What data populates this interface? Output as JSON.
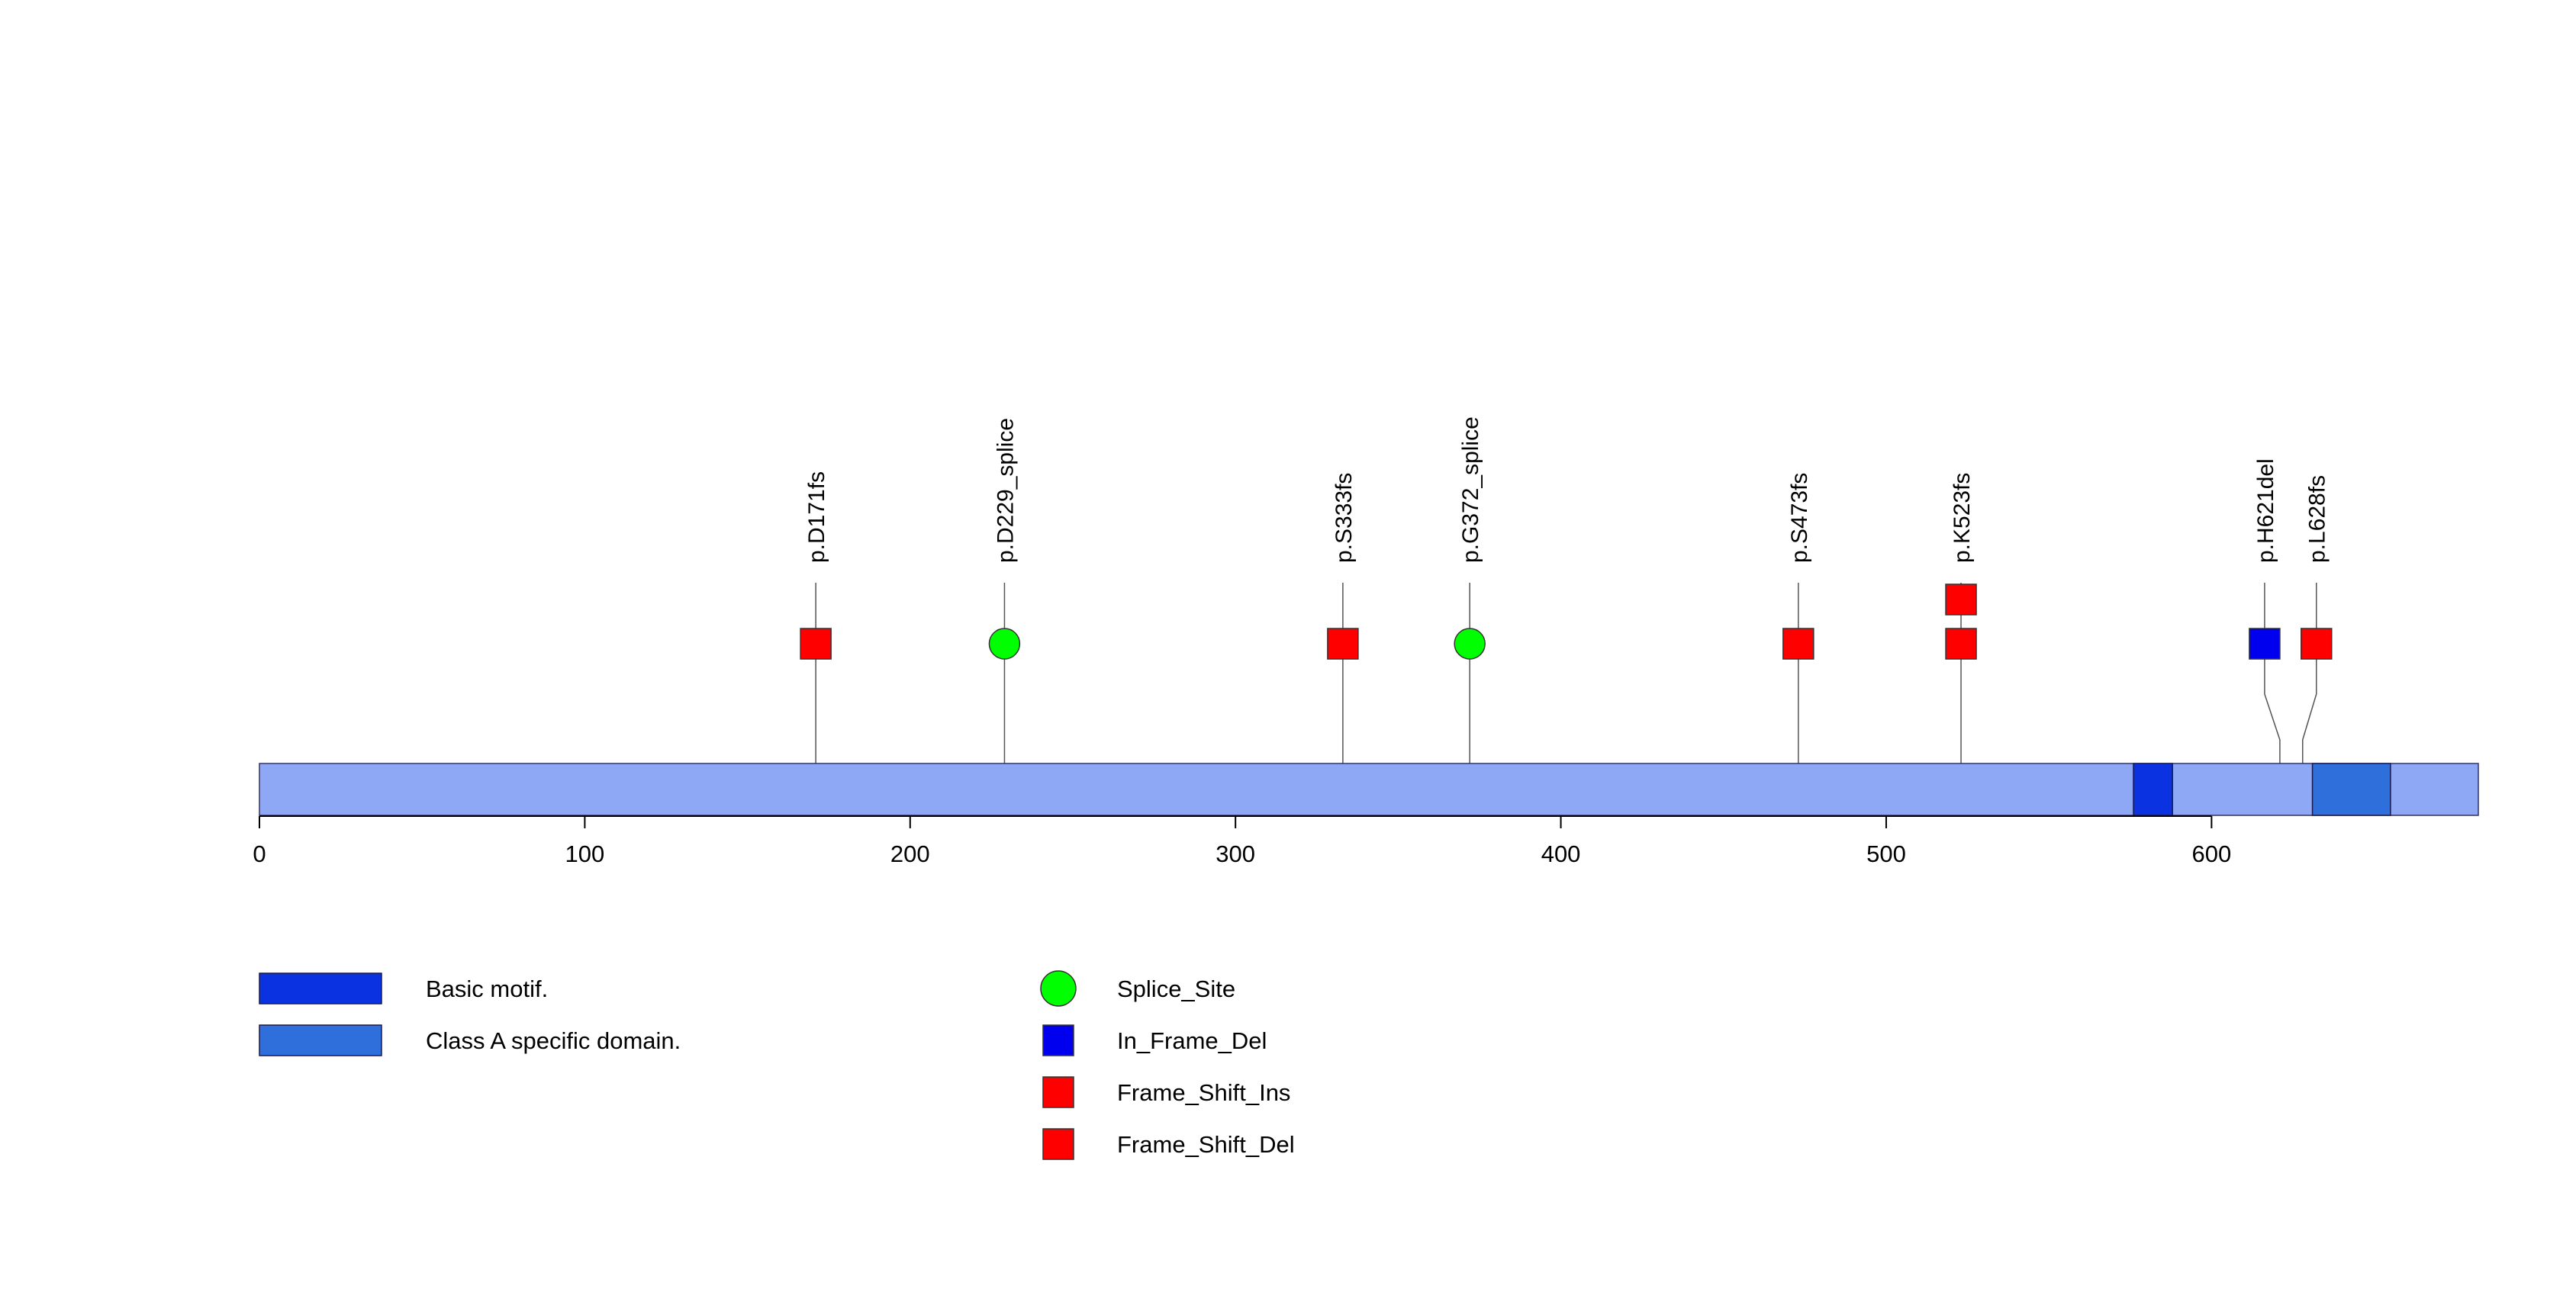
{
  "protein": {
    "length": 682,
    "color": "#8ea8f5"
  },
  "axis": {
    "min": 0,
    "max": 682,
    "ticks": [
      0,
      100,
      200,
      300,
      400,
      500,
      600
    ],
    "tick_labels": [
      "0",
      "100",
      "200",
      "300",
      "400",
      "500",
      "600"
    ]
  },
  "domains": [
    {
      "name": "Basic motif.",
      "start": 576,
      "end": 588,
      "color": "#0a32e0"
    },
    {
      "name": "Class A specific domain.",
      "start": 631,
      "end": 655,
      "color": "#2f6fdc"
    }
  ],
  "mutations": [
    {
      "label": "p.D171fs",
      "position": 171,
      "type": "Frame_Shift_Del",
      "count": 1
    },
    {
      "label": "p.D229_splice",
      "position": 229,
      "type": "Splice_Site",
      "count": 1
    },
    {
      "label": "p.S333fs",
      "position": 333,
      "type": "Frame_Shift_Del",
      "count": 1
    },
    {
      "label": "p.G372_splice",
      "position": 372,
      "type": "Splice_Site",
      "count": 1
    },
    {
      "label": "p.S473fs",
      "position": 473,
      "type": "Frame_Shift_Del",
      "count": 1
    },
    {
      "label": "p.K523fs",
      "position": 523,
      "type": "Frame_Shift_Del",
      "count": 2
    },
    {
      "label": "p.H621del",
      "position": 621,
      "type": "In_Frame_Del",
      "count": 1
    },
    {
      "label": "p.L628fs",
      "position": 628,
      "type": "Frame_Shift_Del",
      "count": 1
    }
  ],
  "legend_domains": [
    {
      "label": "Basic motif.",
      "color": "#0a32e0"
    },
    {
      "label": "Class A specific domain.",
      "color": "#2f6fdc"
    }
  ],
  "legend_mutations": [
    {
      "label": "Splice_Site",
      "shape": "circle",
      "color": "#00ff00"
    },
    {
      "label": "In_Frame_Del",
      "shape": "square",
      "color": "#0000ee"
    },
    {
      "label": "Frame_Shift_Ins",
      "shape": "square",
      "color": "#ff0000"
    },
    {
      "label": "Frame_Shift_Del",
      "shape": "square",
      "color": "#ff0000"
    }
  ],
  "mutation_colors": {
    "Splice_Site": "#00ff00",
    "In_Frame_Del": "#0000ee",
    "Frame_Shift_Ins": "#ff0000",
    "Frame_Shift_Del": "#ff0000"
  }
}
